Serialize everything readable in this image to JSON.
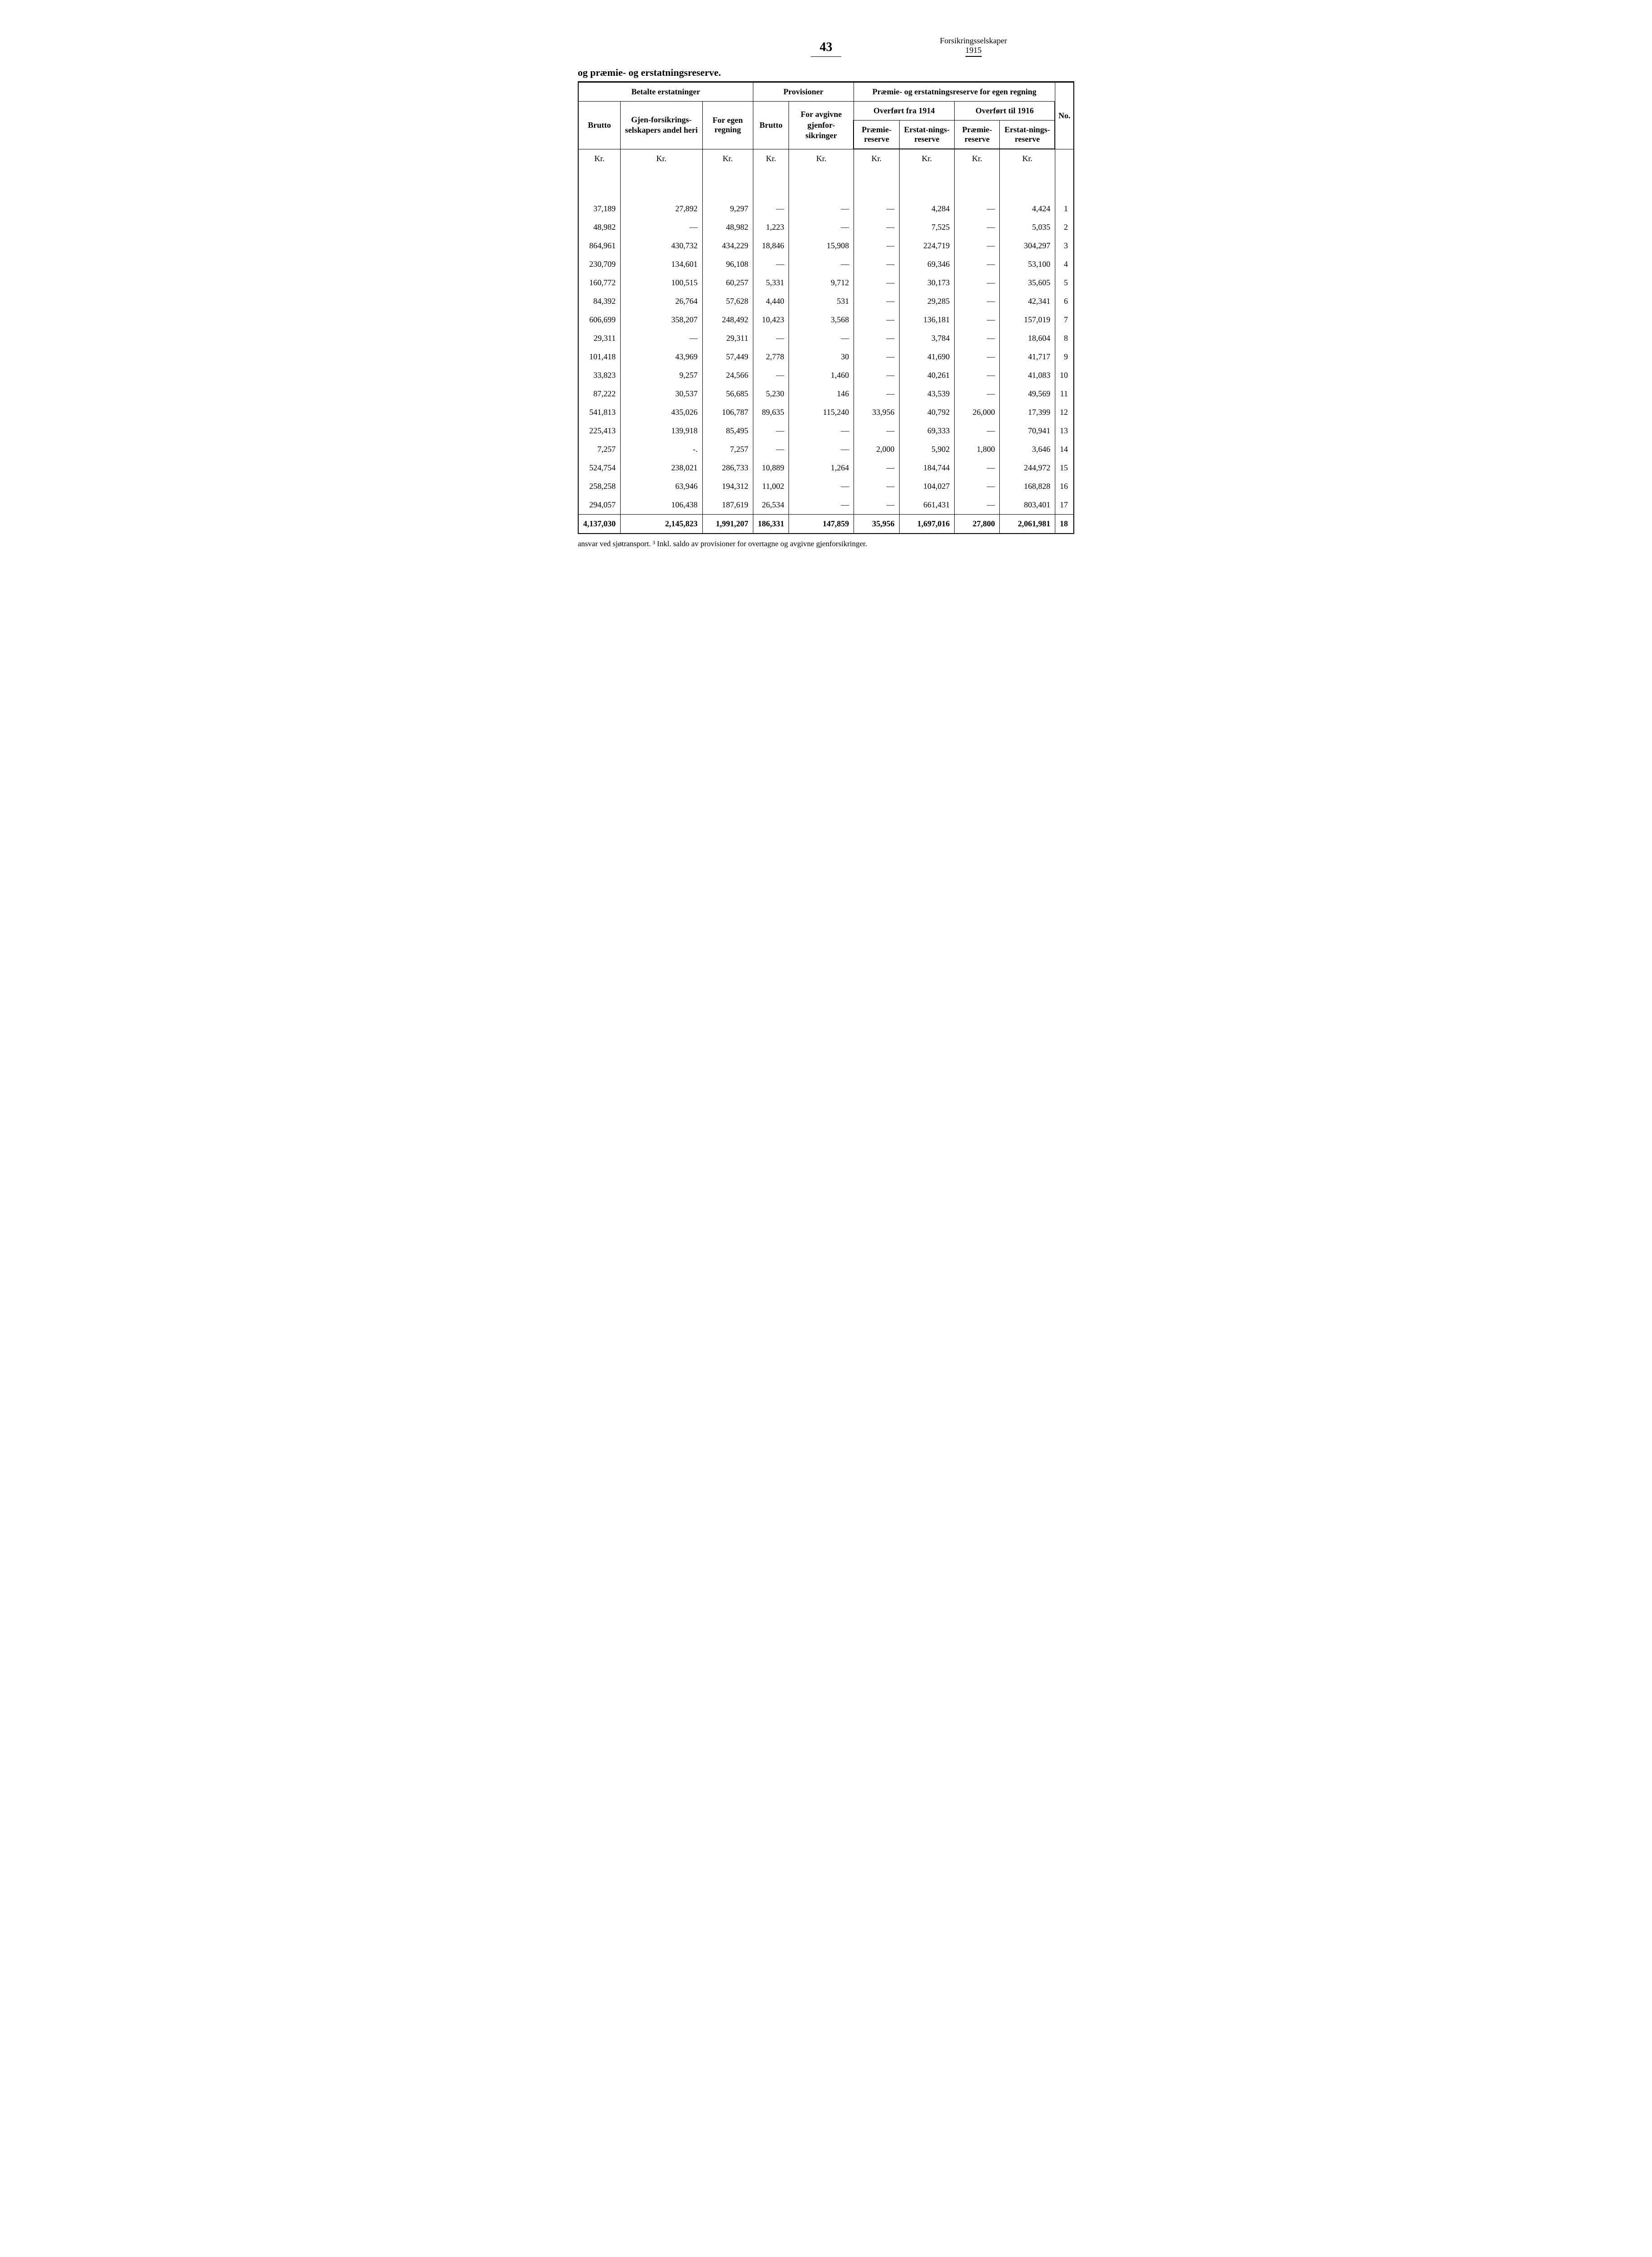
{
  "header": {
    "page_number": "43",
    "doc_title": "Forsikringsselskaper",
    "year": "1915"
  },
  "section_title": "og præmie- og erstatningsreserve.",
  "table": {
    "group_headers": {
      "betalte": "Betalte erstatninger",
      "provisioner": "Provisioner",
      "reserve": "Præmie- og erstatningsreserve for egen regning",
      "overf_fra": "Overført fra 1914",
      "overf_til": "Overført til 1916",
      "no": "No."
    },
    "col_headers": {
      "brutto1": "Brutto",
      "gjen": "Gjen-forsikrings-selskapers andel heri",
      "for_egen": "For egen regning",
      "brutto2": "Brutto",
      "for_avg": "For avgivne gjenfor-sikringer",
      "pr_res1": "Præmie-reserve",
      "er_res1": "Erstat-nings-reserve",
      "pr_res2": "Præmie-reserve",
      "er_res2": "Erstat-nings-reserve"
    },
    "unit": "Kr.",
    "rows": [
      [
        "37,189",
        "27,892",
        "9,297",
        "—",
        "—",
        "—",
        "4,284",
        "—",
        "4,424",
        "1"
      ],
      [
        "48,982",
        "—",
        "48,982",
        "1,223",
        "—",
        "—",
        "7,525",
        "—",
        "5,035",
        "2"
      ],
      [
        "864,961",
        "430,732",
        "434,229",
        "18,846",
        "15,908",
        "—",
        "224,719",
        "—",
        "304,297",
        "3"
      ],
      [
        "230,709",
        "134,601",
        "96,108",
        "—",
        "—",
        "—",
        "69,346",
        "—",
        "53,100",
        "4"
      ],
      [
        "160,772",
        "100,515",
        "60,257",
        "5,331",
        "9,712",
        "—",
        "30,173",
        "—",
        "35,605",
        "5"
      ],
      [
        "84,392",
        "26,764",
        "57,628",
        "4,440",
        "531",
        "—",
        "29,285",
        "—",
        "42,341",
        "6"
      ],
      [
        "606,699",
        "358,207",
        "248,492",
        "10,423",
        "3,568",
        "—",
        "136,181",
        "—",
        "157,019",
        "7"
      ],
      [
        "29,311",
        "—",
        "29,311",
        "—",
        "—",
        "—",
        "3,784",
        "—",
        "18,604",
        "8"
      ],
      [
        "101,418",
        "43,969",
        "57,449",
        "2,778",
        "30",
        "—",
        "41,690",
        "—",
        "41,717",
        "9"
      ],
      [
        "33,823",
        "9,257",
        "24,566",
        "—",
        "1,460",
        "—",
        "40,261",
        "—",
        "41,083",
        "10"
      ],
      [
        "87,222",
        "30,537",
        "56,685",
        "5,230",
        "146",
        "—",
        "43,539",
        "—",
        "49,569",
        "11"
      ],
      [
        "541,813",
        "435,026",
        "106,787",
        "89,635",
        "115,240",
        "33,956",
        "40,792",
        "26,000",
        "17,399",
        "12"
      ],
      [
        "225,413",
        "139,918",
        "85,495",
        "—",
        "—",
        "—",
        "69,333",
        "—",
        "70,941",
        "13"
      ],
      [
        "7,257",
        "-.",
        "7,257",
        "—",
        "—",
        "2,000",
        "5,902",
        "1,800",
        "3,646",
        "14"
      ],
      [
        "524,754",
        "238,021",
        "286,733",
        "10,889",
        "1,264",
        "—",
        "184,744",
        "—",
        "244,972",
        "15"
      ],
      [
        "258,258",
        "63,946",
        "194,312",
        "11,002",
        "—",
        "—",
        "104,027",
        "—",
        "168,828",
        "16"
      ],
      [
        "294,057",
        "106,438",
        "187,619",
        "26,534",
        "—",
        "—",
        "661,431",
        "—",
        "803,401",
        "17"
      ]
    ],
    "total": [
      "4,137,030",
      "2,145,823",
      "1,991,207",
      "186,331",
      "147,859",
      "35,956",
      "1,697,016",
      "27,800",
      "2,061,981",
      "18"
    ]
  },
  "footnote": "ansvar ved sjøtransport.   ³ Inkl. saldo av provisioner for overtagne og avgivne gjenforsikringer."
}
